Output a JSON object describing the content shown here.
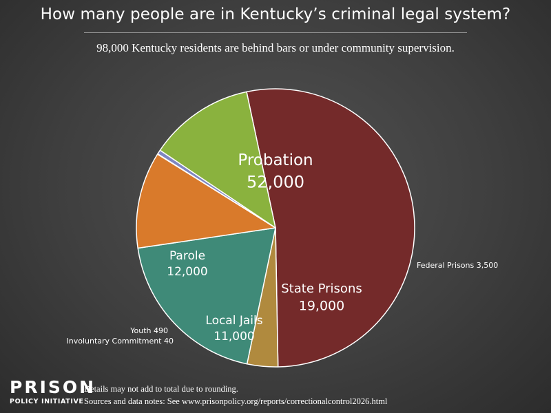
{
  "chart_data": {
    "type": "pie",
    "title": "How many people are in Kentucky’s criminal legal system?",
    "subtitle": "98,000 Kentucky residents are behind bars or under community supervision.",
    "slices": [
      {
        "label": "Probation",
        "value_label": "52,000",
        "value": 52000,
        "color": "#742a2a",
        "label_style": "inside"
      },
      {
        "label": "Federal Prisons",
        "value_label": "3,500",
        "value": 3500,
        "color": "#b08a3e",
        "label_style": "outside"
      },
      {
        "label": "State Prisons",
        "value_label": "19,000",
        "value": 19000,
        "color": "#3f8a78",
        "label_style": "inside"
      },
      {
        "label": "Local Jails",
        "value_label": "11,000",
        "value": 11000,
        "color": "#d97a2b",
        "label_style": "inside"
      },
      {
        "label": "Involuntary Commitment",
        "value_label": "40",
        "value": 40,
        "color": "#d8d8d8",
        "label_style": "outside"
      },
      {
        "label": "Youth",
        "value_label": "490",
        "value": 490,
        "color": "#7e86c2",
        "label_style": "outside"
      },
      {
        "label": "Parole",
        "value_label": "12,000",
        "value": 12000,
        "color": "#8ab23e",
        "label_style": "inside"
      }
    ]
  },
  "footer": {
    "logo_line1": "PRISON",
    "logo_line2": "POLICY INITIATIVE",
    "note1": "Details may not add to total due to rounding.",
    "note2": "Sources and data notes: See www.prisonpolicy.org/reports/correctionalcontrol2026.html"
  }
}
